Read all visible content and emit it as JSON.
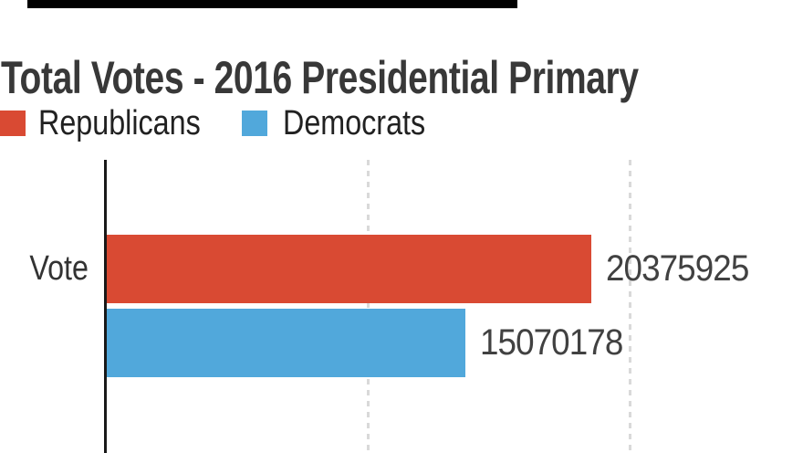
{
  "chart_data": {
    "type": "bar",
    "orientation": "horizontal",
    "title": "Total Votes - 2016 Presidential Primary",
    "categories": [
      "Vote"
    ],
    "series": [
      {
        "name": "Republicans",
        "color": "#d94a33",
        "values": [
          20375925
        ]
      },
      {
        "name": "Democrats",
        "color": "#51a8db",
        "values": [
          15070178
        ]
      }
    ],
    "value_labels_shown": true,
    "legend_position": "top",
    "xlim": [
      0,
      29000000
    ],
    "gridlines_x": [
      11000000,
      22000000
    ],
    "gridline_style": "dashed",
    "axis_color": "#191919",
    "gridline_color": "#d9d9d9"
  }
}
